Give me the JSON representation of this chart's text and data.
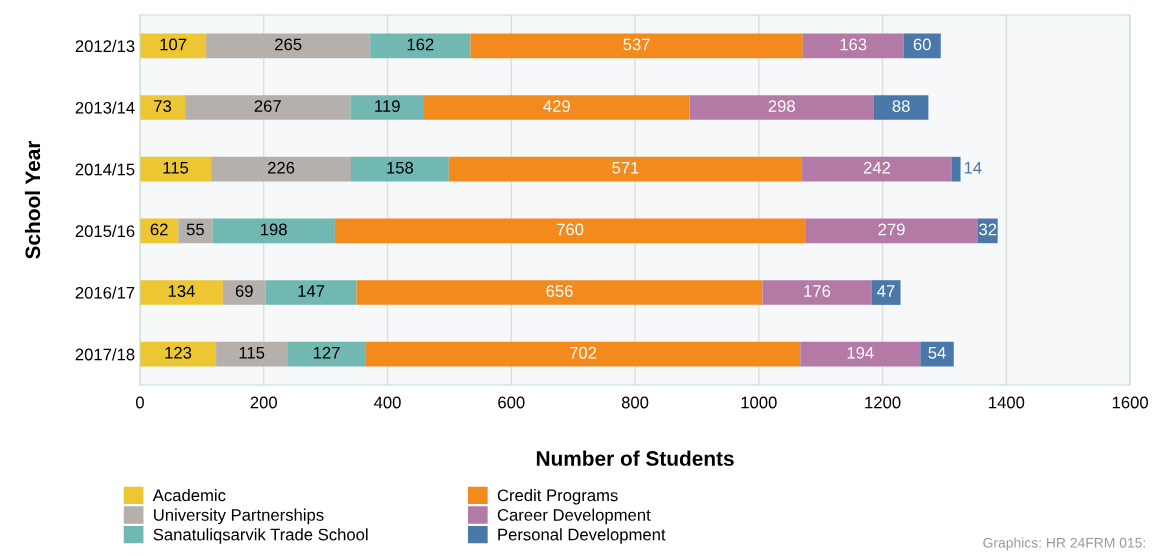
{
  "chart_data": {
    "type": "bar",
    "orientation": "horizontal",
    "stacked": true,
    "xlabel": "Number of Students",
    "ylabel": "School Year",
    "categories": [
      "2012/13",
      "2013/14",
      "2014/15",
      "2015/16",
      "2016/17",
      "2017/18"
    ],
    "series": [
      {
        "name": "Academic",
        "color": "#ecc633",
        "values": [
          107,
          73,
          115,
          62,
          134,
          123
        ]
      },
      {
        "name": "University Partnerships",
        "color": "#b5b0ab",
        "values": [
          265,
          267,
          226,
          55,
          69,
          115
        ]
      },
      {
        "name": "Sanatuliqsarvik Trade School",
        "color": "#72b8b2",
        "values": [
          162,
          119,
          158,
          198,
          147,
          127
        ]
      },
      {
        "name": "Credit Programs",
        "color": "#f28a1e",
        "values": [
          537,
          429,
          571,
          760,
          656,
          702
        ]
      },
      {
        "name": "Career Development",
        "color": "#b37aa6",
        "values": [
          163,
          298,
          242,
          279,
          176,
          194
        ]
      },
      {
        "name": "Personal Development",
        "color": "#4a78a8",
        "values": [
          60,
          88,
          14,
          32,
          47,
          54
        ]
      }
    ],
    "xlim": [
      0,
      1600
    ],
    "xticks": [
      0,
      200,
      400,
      600,
      800,
      1000,
      1200,
      1400,
      1600
    ],
    "grid": "x",
    "legend": "bottom left",
    "data_labels": true,
    "annotations": [
      "Graphics: HR 24FRM 015:"
    ]
  }
}
